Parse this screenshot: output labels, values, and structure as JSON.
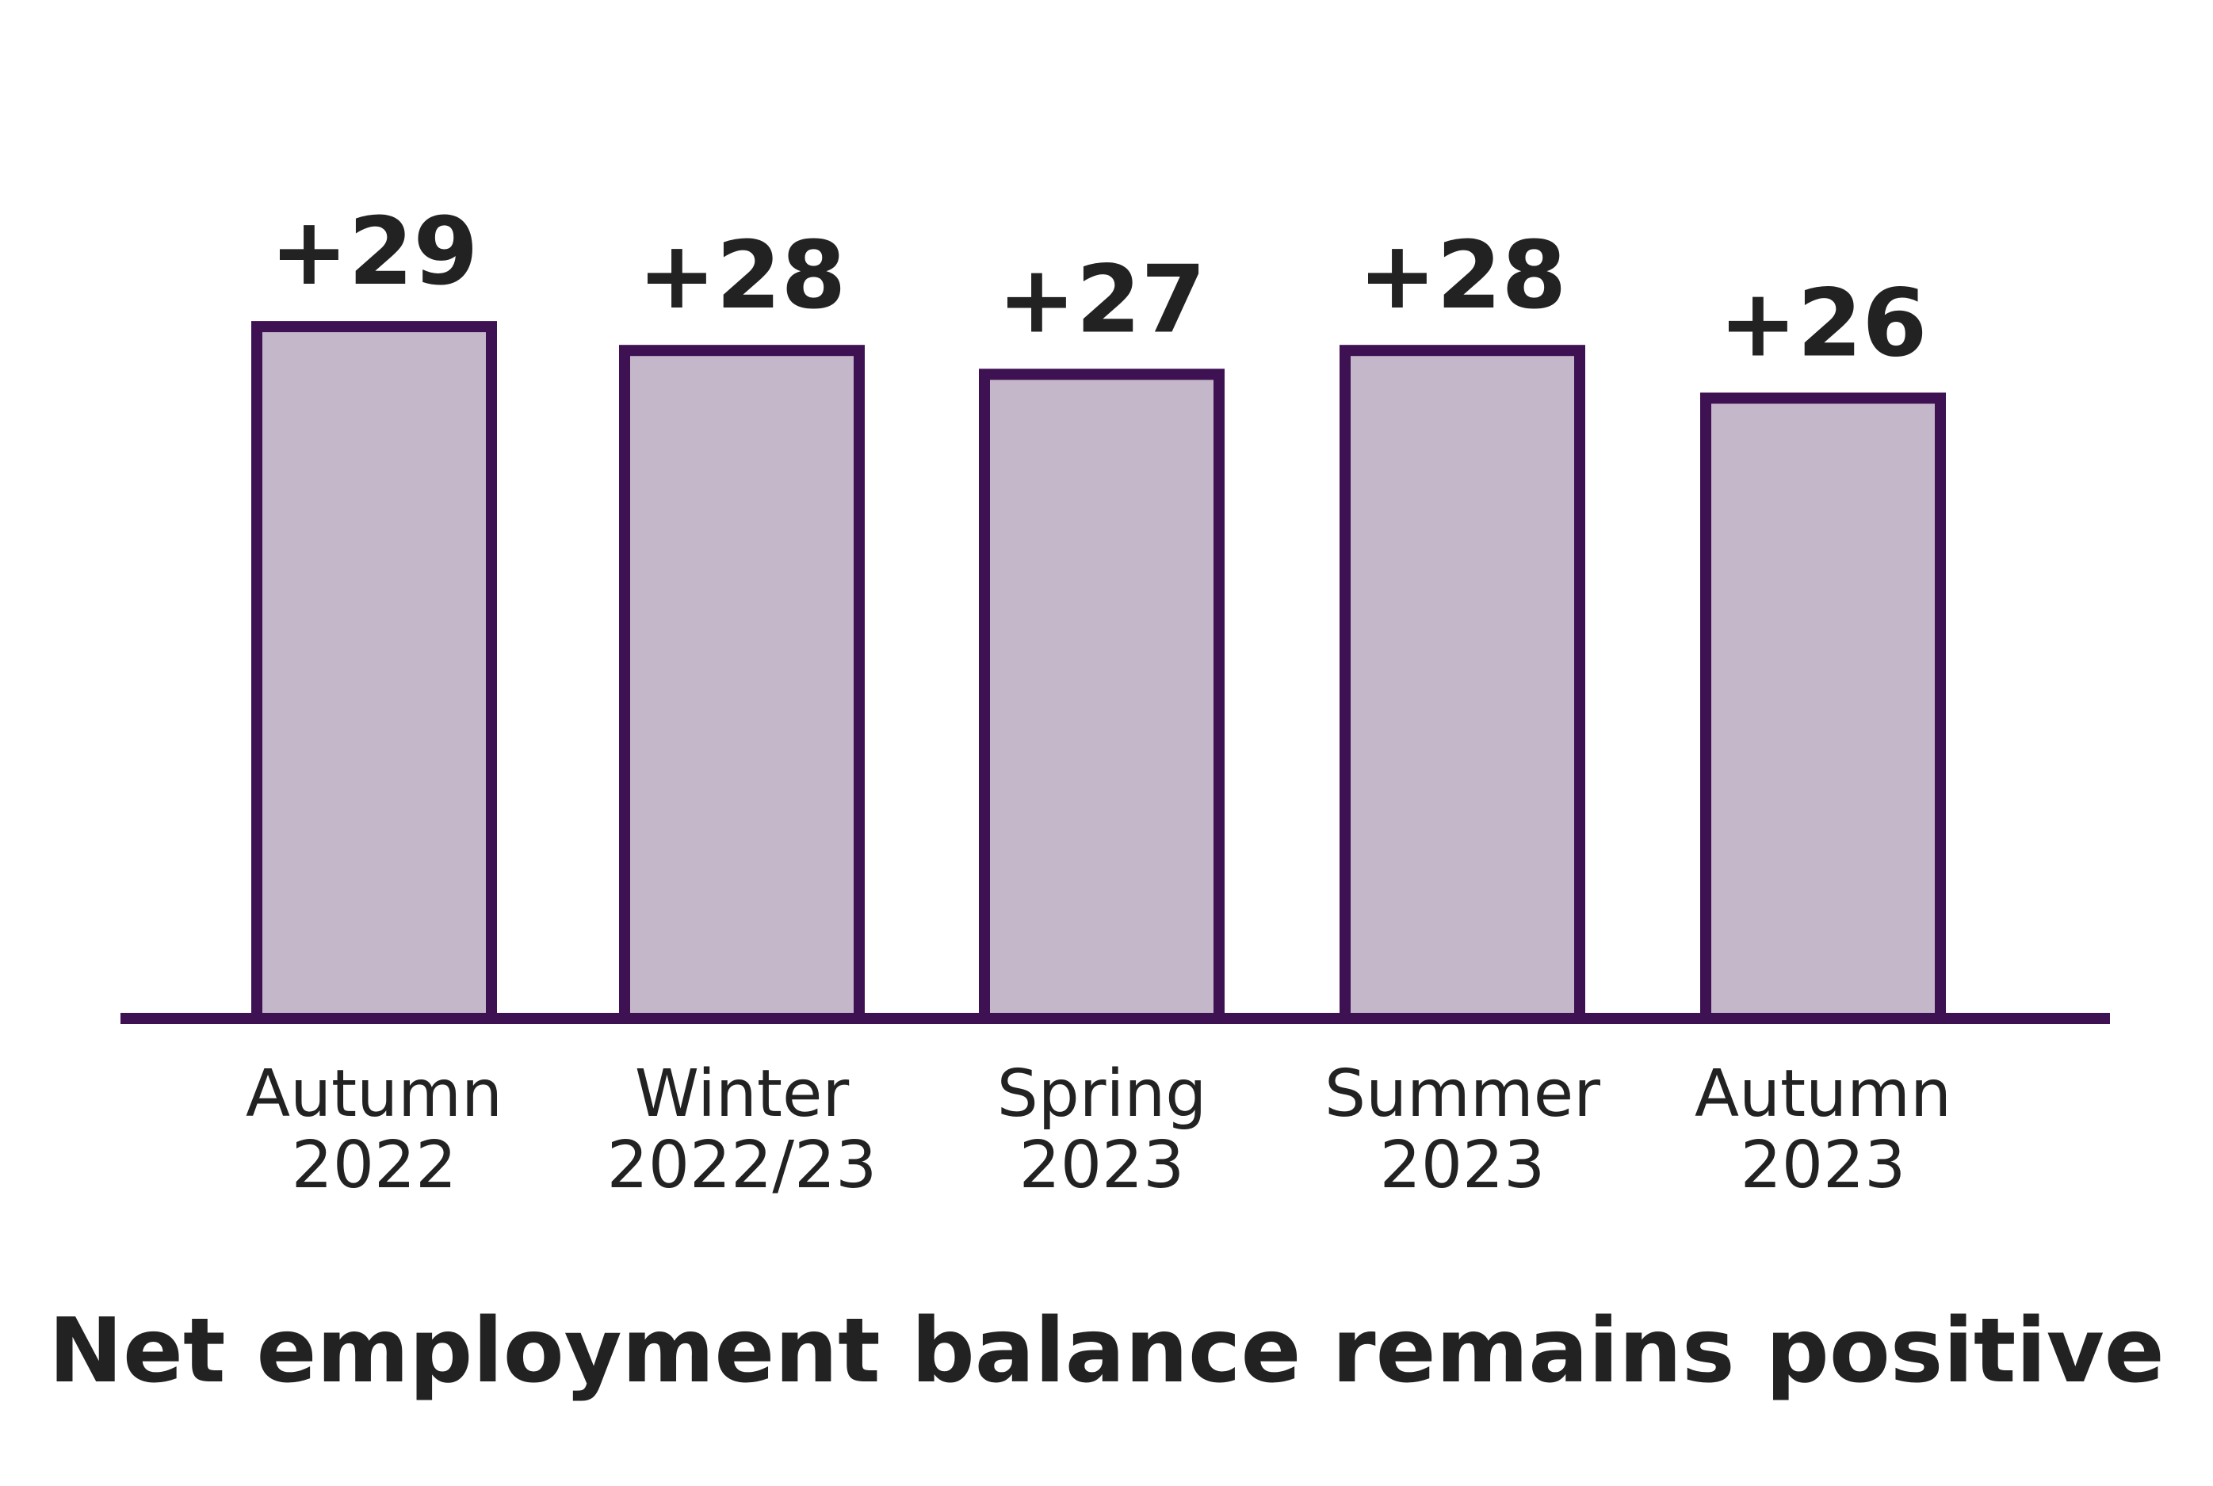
{
  "chart_data": {
    "type": "bar",
    "title": "Net employment balance remains positive",
    "categories": [
      [
        "Autumn",
        "2022"
      ],
      [
        "Winter",
        "2022/23"
      ],
      [
        "Spring",
        "2023"
      ],
      [
        "Summer",
        "2023"
      ],
      [
        "Autumn",
        "2023"
      ]
    ],
    "values": [
      29,
      28,
      27,
      28,
      26
    ],
    "value_labels": [
      "+29",
      "+28",
      "+27",
      "+28",
      "+26"
    ],
    "xlabel": "",
    "ylabel": "",
    "ylim": [
      0,
      29
    ],
    "grid": false,
    "legend": "none",
    "colors": {
      "bar_fill": "#c5b7ca",
      "bar_outline": "#3d1152",
      "text": "#222222"
    }
  }
}
